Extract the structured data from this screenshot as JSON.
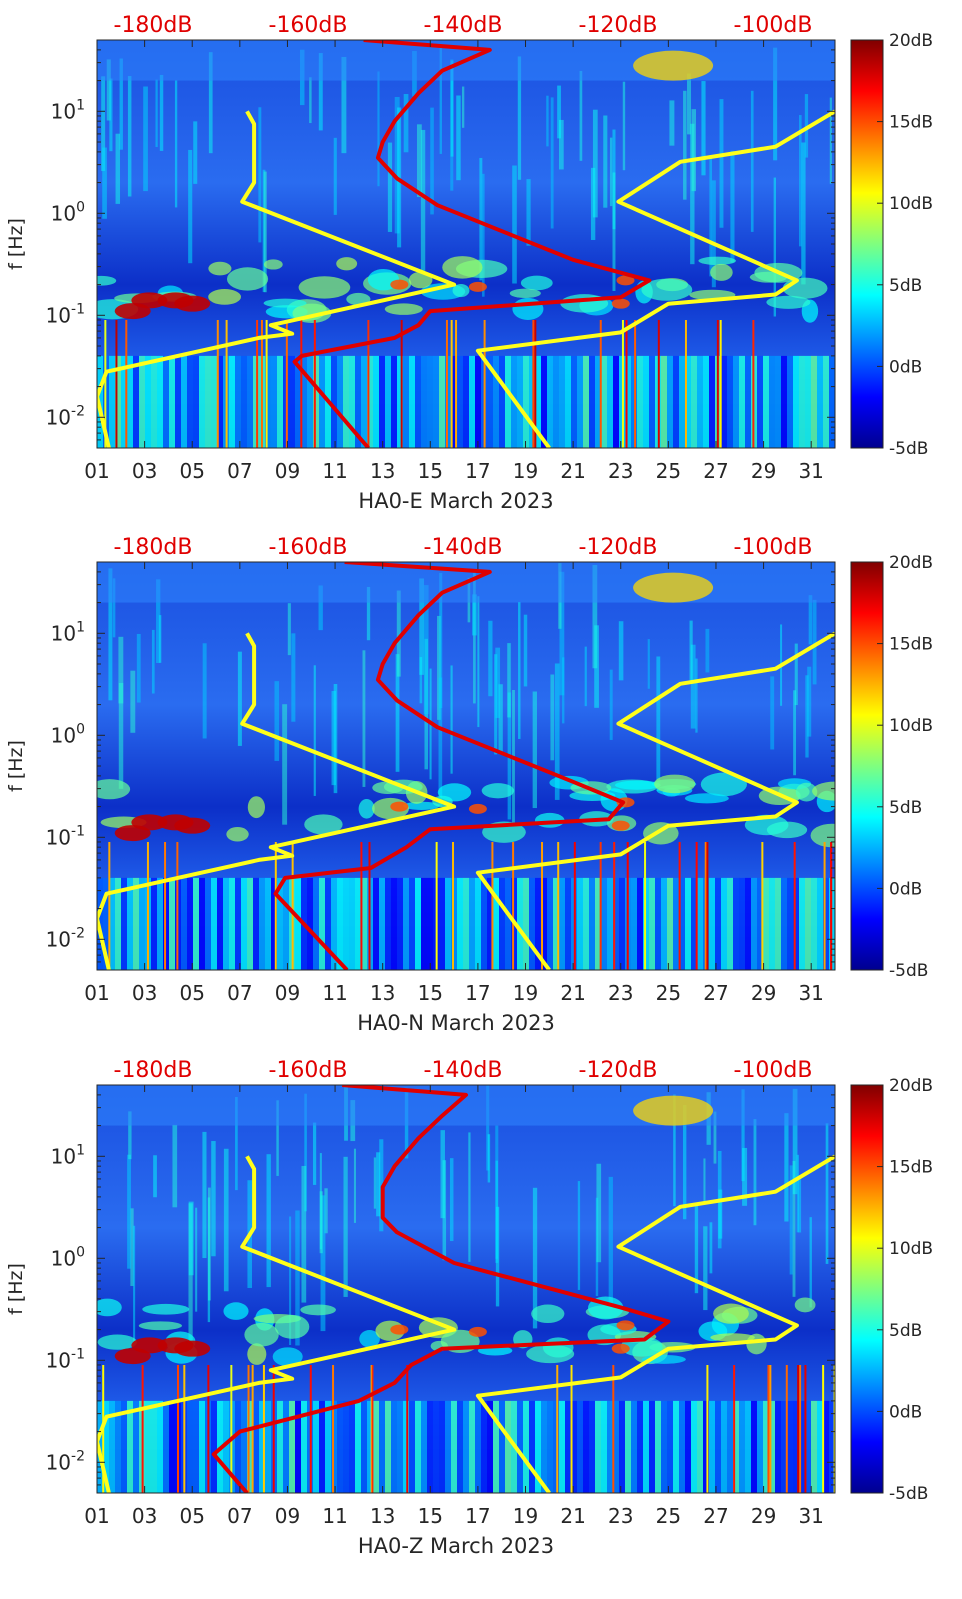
{
  "chart_data": [
    {
      "type": "heatmap",
      "xlabel": "HA0-E March 2023",
      "ylabel": "f [Hz]",
      "x_ticks": [
        "01",
        "03",
        "05",
        "07",
        "09",
        "11",
        "13",
        "15",
        "17",
        "19",
        "21",
        "23",
        "25",
        "27",
        "29",
        "31"
      ],
      "xlim": [
        1,
        32
      ],
      "y_scale": "log",
      "ylim": [
        0.005,
        50
      ],
      "y_ticks": [
        {
          "base": "10",
          "exp": "-2"
        },
        {
          "base": "10",
          "exp": "-1"
        },
        {
          "base": "10",
          "exp": "0"
        },
        {
          "base": "10",
          "exp": "1"
        }
      ],
      "top_labels": [
        "-180dB",
        "-160dB",
        "-140dB",
        "-120dB",
        "-100dB"
      ],
      "colorbar": {
        "ticks": [
          "20dB",
          "15dB",
          "10dB",
          "5dB",
          "0dB",
          "-5dB"
        ],
        "range": [
          -5,
          20
        ],
        "colormap": "jet"
      },
      "series": [
        {
          "color": "#ffff1a",
          "points": [
            [
              1.5,
              0.005
            ],
            [
              1.0,
              0.016
            ],
            [
              1.4,
              0.028
            ],
            [
              7.8,
              0.06
            ],
            [
              9.2,
              0.066
            ],
            [
              8.3,
              0.08
            ],
            [
              16.0,
              0.2
            ],
            [
              7.1,
              1.3
            ],
            [
              7.6,
              2.0
            ],
            [
              7.6,
              7.5
            ],
            [
              7.3,
              10
            ]
          ]
        },
        {
          "color": "#ffff1a",
          "points": [
            [
              20.0,
              0.005
            ],
            [
              17.0,
              0.045
            ],
            [
              23.0,
              0.068
            ],
            [
              25.0,
              0.13
            ],
            [
              29.5,
              0.16
            ],
            [
              30.4,
              0.22
            ],
            [
              22.9,
              1.3
            ],
            [
              25.5,
              3.2
            ],
            [
              29.5,
              4.5
            ],
            [
              32.0,
              10
            ]
          ]
        },
        {
          "color": "#e00000",
          "points": [
            [
              12.4,
              0.005
            ],
            [
              9.3,
              0.035
            ],
            [
              9.6,
              0.04
            ],
            [
              13.5,
              0.06
            ],
            [
              14.5,
              0.08
            ],
            [
              15.0,
              0.11
            ],
            [
              23.0,
              0.15
            ],
            [
              24.2,
              0.22
            ],
            [
              21.0,
              0.35
            ],
            [
              15.3,
              1.2
            ],
            [
              13.6,
              2.2
            ],
            [
              12.8,
              3.5
            ],
            [
              13.0,
              5.0
            ],
            [
              13.5,
              8.0
            ],
            [
              14.5,
              15
            ],
            [
              15.5,
              25
            ],
            [
              17.5,
              40
            ],
            [
              12.2,
              50
            ]
          ]
        }
      ]
    },
    {
      "type": "heatmap",
      "xlabel": "HA0-N March 2023",
      "ylabel": "f [Hz]",
      "x_ticks": [
        "01",
        "03",
        "05",
        "07",
        "09",
        "11",
        "13",
        "15",
        "17",
        "19",
        "21",
        "23",
        "25",
        "27",
        "29",
        "31"
      ],
      "xlim": [
        1,
        32
      ],
      "y_scale": "log",
      "ylim": [
        0.005,
        50
      ],
      "y_ticks": [
        {
          "base": "10",
          "exp": "-2"
        },
        {
          "base": "10",
          "exp": "-1"
        },
        {
          "base": "10",
          "exp": "0"
        },
        {
          "base": "10",
          "exp": "1"
        }
      ],
      "top_labels": [
        "-180dB",
        "-160dB",
        "-140dB",
        "-120dB",
        "-100dB"
      ],
      "colorbar": {
        "ticks": [
          "20dB",
          "15dB",
          "10dB",
          "5dB",
          "0dB",
          "-5dB"
        ],
        "range": [
          -5,
          20
        ],
        "colormap": "jet"
      },
      "series": [
        {
          "color": "#ffff1a",
          "points": [
            [
              1.5,
              0.005
            ],
            [
              1.0,
              0.016
            ],
            [
              1.4,
              0.028
            ],
            [
              7.8,
              0.06
            ],
            [
              9.2,
              0.066
            ],
            [
              8.3,
              0.08
            ],
            [
              16.0,
              0.2
            ],
            [
              7.1,
              1.3
            ],
            [
              7.6,
              2.0
            ],
            [
              7.6,
              7.5
            ],
            [
              7.3,
              10
            ]
          ]
        },
        {
          "color": "#ffff1a",
          "points": [
            [
              20.0,
              0.005
            ],
            [
              17.0,
              0.045
            ],
            [
              23.0,
              0.068
            ],
            [
              25.0,
              0.13
            ],
            [
              29.5,
              0.16
            ],
            [
              30.4,
              0.22
            ],
            [
              22.9,
              1.3
            ],
            [
              25.5,
              3.2
            ],
            [
              29.5,
              4.5
            ],
            [
              32.0,
              10
            ]
          ]
        },
        {
          "color": "#e00000",
          "points": [
            [
              11.5,
              0.005
            ],
            [
              8.5,
              0.028
            ],
            [
              8.9,
              0.04
            ],
            [
              12.5,
              0.05
            ],
            [
              14.0,
              0.08
            ],
            [
              15.0,
              0.12
            ],
            [
              22.5,
              0.15
            ],
            [
              23.1,
              0.22
            ],
            [
              21.0,
              0.35
            ],
            [
              15.3,
              1.2
            ],
            [
              13.6,
              2.2
            ],
            [
              12.8,
              3.5
            ],
            [
              13.0,
              5.0
            ],
            [
              13.5,
              8.0
            ],
            [
              14.5,
              15
            ],
            [
              15.5,
              25
            ],
            [
              17.5,
              40
            ],
            [
              11.4,
              50
            ]
          ]
        }
      ]
    },
    {
      "type": "heatmap",
      "xlabel": "HA0-Z March 2023",
      "ylabel": "f [Hz]",
      "x_ticks": [
        "01",
        "03",
        "05",
        "07",
        "09",
        "11",
        "13",
        "15",
        "17",
        "19",
        "21",
        "23",
        "25",
        "27",
        "29",
        "31"
      ],
      "xlim": [
        1,
        32
      ],
      "y_scale": "log",
      "ylim": [
        0.005,
        50
      ],
      "y_ticks": [
        {
          "base": "10",
          "exp": "-2"
        },
        {
          "base": "10",
          "exp": "-1"
        },
        {
          "base": "10",
          "exp": "0"
        },
        {
          "base": "10",
          "exp": "1"
        }
      ],
      "top_labels": [
        "-180dB",
        "-160dB",
        "-140dB",
        "-120dB",
        "-100dB"
      ],
      "colorbar": {
        "ticks": [
          "20dB",
          "15dB",
          "10dB",
          "5dB",
          "0dB",
          "-5dB"
        ],
        "range": [
          -5,
          20
        ],
        "colormap": "jet"
      },
      "series": [
        {
          "color": "#ffff1a",
          "points": [
            [
              1.5,
              0.005
            ],
            [
              1.0,
              0.016
            ],
            [
              1.4,
              0.028
            ],
            [
              7.8,
              0.06
            ],
            [
              9.2,
              0.066
            ],
            [
              8.3,
              0.08
            ],
            [
              16.0,
              0.2
            ],
            [
              7.1,
              1.3
            ],
            [
              7.6,
              2.0
            ],
            [
              7.6,
              7.5
            ],
            [
              7.3,
              10
            ]
          ]
        },
        {
          "color": "#ffff1a",
          "points": [
            [
              20.0,
              0.005
            ],
            [
              17.0,
              0.045
            ],
            [
              23.0,
              0.068
            ],
            [
              25.0,
              0.13
            ],
            [
              29.5,
              0.16
            ],
            [
              30.4,
              0.22
            ],
            [
              22.9,
              1.3
            ],
            [
              25.5,
              3.2
            ],
            [
              29.5,
              4.5
            ],
            [
              32.0,
              10
            ]
          ]
        },
        {
          "color": "#e00000",
          "points": [
            [
              7.3,
              0.005
            ],
            [
              5.9,
              0.012
            ],
            [
              7.0,
              0.02
            ],
            [
              12.0,
              0.04
            ],
            [
              13.5,
              0.06
            ],
            [
              14.2,
              0.09
            ],
            [
              15.5,
              0.13
            ],
            [
              24.0,
              0.16
            ],
            [
              25.0,
              0.24
            ],
            [
              23.0,
              0.33
            ],
            [
              16.0,
              0.9
            ],
            [
              13.6,
              1.8
            ],
            [
              13.0,
              2.5
            ],
            [
              13.0,
              5.0
            ],
            [
              13.5,
              8.0
            ],
            [
              14.5,
              15
            ],
            [
              15.5,
              25
            ],
            [
              16.5,
              40
            ],
            [
              11.3,
              50
            ]
          ]
        }
      ]
    }
  ]
}
